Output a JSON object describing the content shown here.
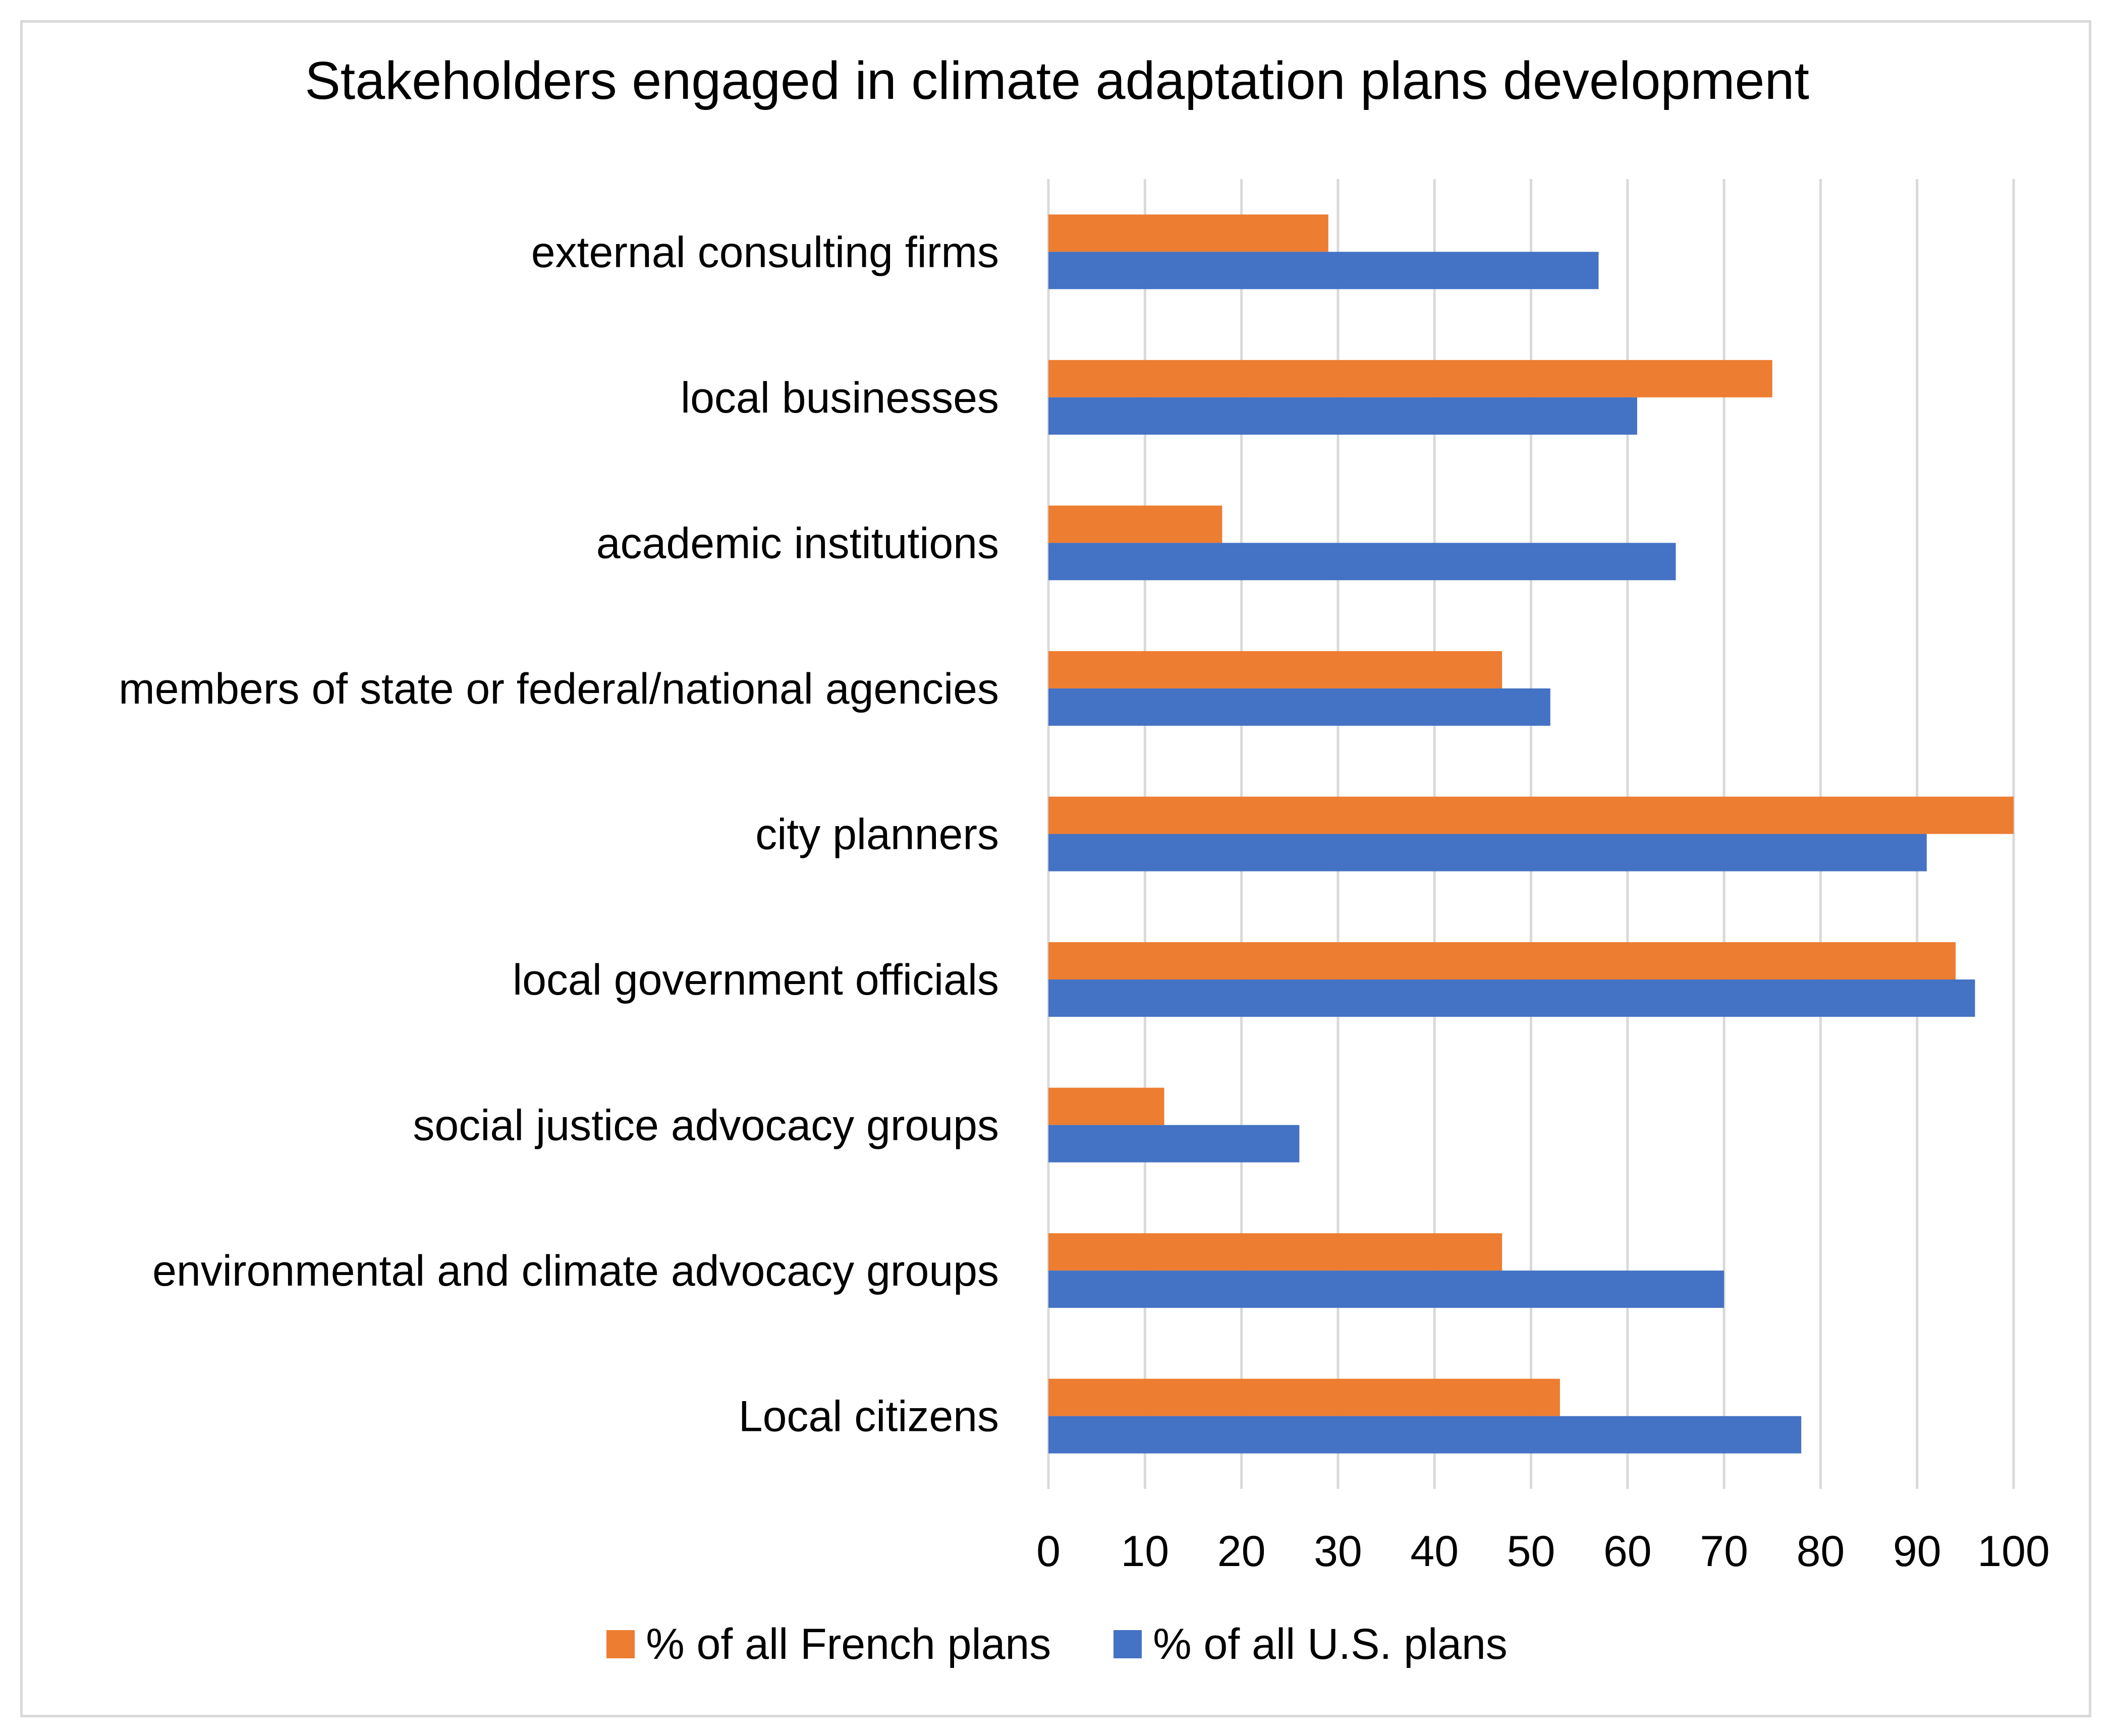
{
  "chart_data": {
    "type": "bar",
    "orientation": "horizontal",
    "title": "Stakeholders engaged in climate adaptation plans development",
    "categories": [
      "external consulting firms",
      "local businesses",
      "academic institutions",
      "members of state or federal/national agencies",
      "city planners",
      "local government officials",
      "social justice advocacy groups",
      "environmental and climate advocacy groups",
      "Local citizens"
    ],
    "series": [
      {
        "name": "% of all French plans",
        "color": "#ED7D31",
        "values": [
          29,
          75,
          18,
          47,
          100,
          94,
          12,
          47,
          53
        ]
      },
      {
        "name": "% of all U.S. plans",
        "color": "#4472C4",
        "values": [
          57,
          61,
          65,
          52,
          91,
          96,
          26,
          70,
          78
        ]
      }
    ],
    "xlim": [
      0,
      100
    ],
    "xticks": [
      "0",
      "10",
      "20",
      "30",
      "40",
      "50",
      "60",
      "70",
      "80",
      "90",
      "100"
    ],
    "grid": true,
    "legend_position": "bottom"
  }
}
